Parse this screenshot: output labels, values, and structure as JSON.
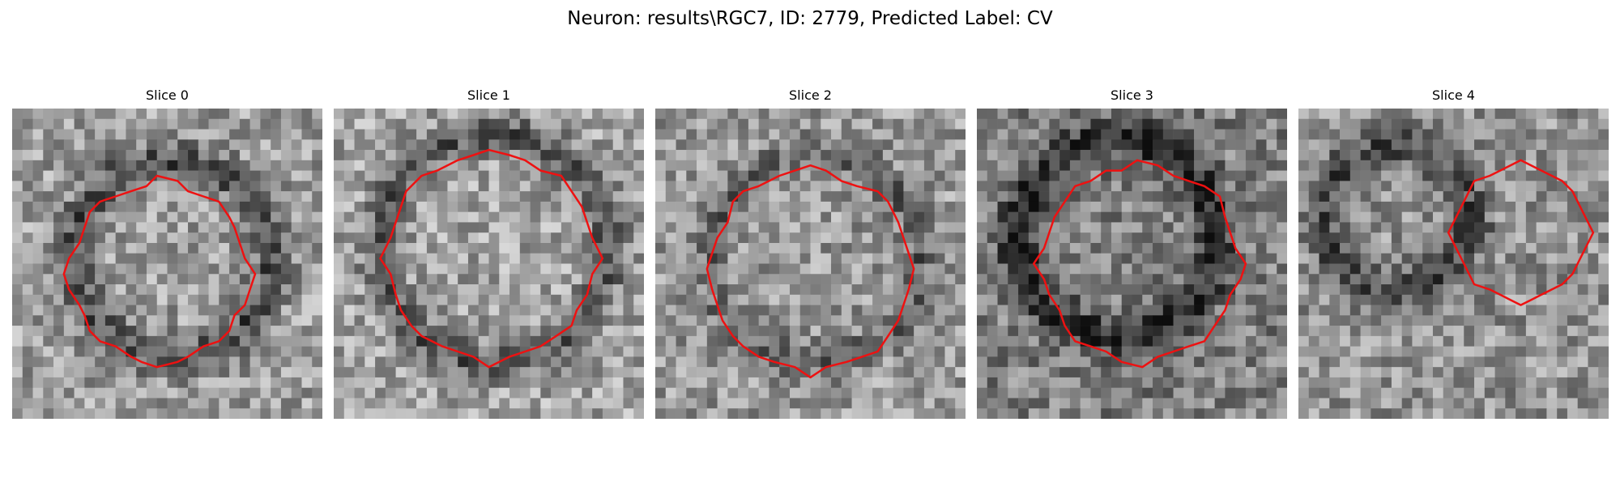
{
  "figure": {
    "title": "Neuron: results\\RGC7, ID: 2779, Predicted Label: CV",
    "contour_color": "#ee1111"
  },
  "panels": [
    {
      "title": "Slice 0"
    },
    {
      "title": "Slice 1"
    },
    {
      "title": "Slice 2"
    },
    {
      "title": "Slice 3"
    },
    {
      "title": "Slice 4"
    }
  ]
}
